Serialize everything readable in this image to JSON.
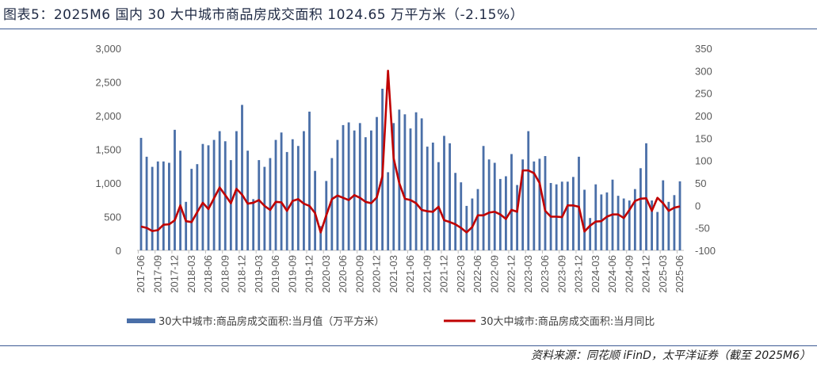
{
  "title": "图表5：2025M6 国内 30 大中城市商品房成交面积 1024.65 万平方米（-2.15%）",
  "source": "资料来源：同花顺 iFinD，太平洋证券（截至 2025M6）",
  "colors": {
    "bar": "#4a6fa8",
    "line": "#c00000",
    "accent": "#3d5a94"
  },
  "chart_data": {
    "type": "bar+line",
    "series": [
      {
        "name": "30大中城市:商品房成交面积:当月值（万平方米）",
        "type": "bar",
        "axis": "left",
        "values": [
          1670,
          1390,
          1240,
          1320,
          1320,
          1300,
          1790,
          1480,
          720,
          1210,
          1280,
          1580,
          1560,
          1640,
          1770,
          1620,
          1340,
          1770,
          2160,
          1480,
          760,
          1340,
          1240,
          1370,
          1640,
          1750,
          1460,
          1650,
          1550,
          1770,
          2060,
          1180,
          360,
          1030,
          1370,
          1640,
          1860,
          1900,
          1780,
          1890,
          1680,
          1780,
          1980,
          2400,
          1160,
          1890,
          2090,
          2020,
          1810,
          2050,
          1960,
          1540,
          1600,
          1310,
          1700,
          1590,
          1150,
          1010,
          660,
          770,
          910,
          1550,
          1350,
          1300,
          1060,
          1100,
          1430,
          970,
          1350,
          1770,
          1320,
          1360,
          1400,
          1000,
          980,
          1020,
          1020,
          1090,
          1390,
          900,
          480,
          980,
          830,
          860,
          1050,
          810,
          770,
          740,
          910,
          1220,
          1590,
          740,
          570,
          1040,
          720,
          820,
          1024.65
        ]
      },
      {
        "name": "30大中城市:商品房成交面积:当月同比",
        "type": "line",
        "axis": "right",
        "values": [
          -47,
          -50,
          -57,
          -55,
          -43,
          -42,
          -33,
          0,
          -35,
          -37,
          -15,
          6,
          -8,
          16,
          40,
          23,
          5,
          37,
          24,
          4,
          6,
          12,
          -1,
          -10,
          8,
          7,
          -12,
          10,
          14,
          4,
          -1,
          -17,
          -60,
          -22,
          14,
          22,
          17,
          12,
          23,
          17,
          8,
          5,
          18,
          65,
          300,
          105,
          50,
          15,
          12,
          5,
          -10,
          -13,
          -14,
          -3,
          -33,
          -37,
          -42,
          -50,
          -60,
          -48,
          -22,
          -22,
          -16,
          -14,
          -20,
          -30,
          -10,
          -14,
          78,
          78,
          72,
          50,
          -12,
          -25,
          -25,
          -26,
          0,
          0,
          -3,
          -58,
          -45,
          -36,
          -35,
          -25,
          -20,
          -20,
          -28,
          -10,
          10,
          15,
          16,
          -12,
          17,
          5,
          -12,
          -5,
          -2.15
        ]
      }
    ],
    "x_start": "2017-06",
    "x_end": "2025-06",
    "x_tick_labels_every": 3,
    "x_tick_labels": [
      "2017-06",
      "2017-09",
      "2017-12",
      "2018-03",
      "2018-06",
      "2018-09",
      "2018-12",
      "2019-03",
      "2019-06",
      "2019-09",
      "2019-12",
      "2020-03",
      "2020-06",
      "2020-09",
      "2020-12",
      "2021-03",
      "2021-06",
      "2021-09",
      "2021-12",
      "2022-03",
      "2022-06",
      "2022-09",
      "2022-12",
      "2023-03",
      "2023-06",
      "2023-09",
      "2023-12",
      "2024-03",
      "2024-06",
      "2024-09",
      "2024-12",
      "2025-03",
      "2025-06"
    ],
    "y_left": {
      "range": [
        0,
        3000
      ],
      "ticks": [
        "0",
        "500",
        "1,000",
        "1,500",
        "2,000",
        "2,500",
        "3,000"
      ]
    },
    "y_right": {
      "range": [
        -100,
        350
      ],
      "ticks": [
        "-100",
        "-50",
        "0",
        "50",
        "100",
        "150",
        "200",
        "250",
        "300",
        "350"
      ]
    },
    "grid": false,
    "legend": "bottom"
  }
}
